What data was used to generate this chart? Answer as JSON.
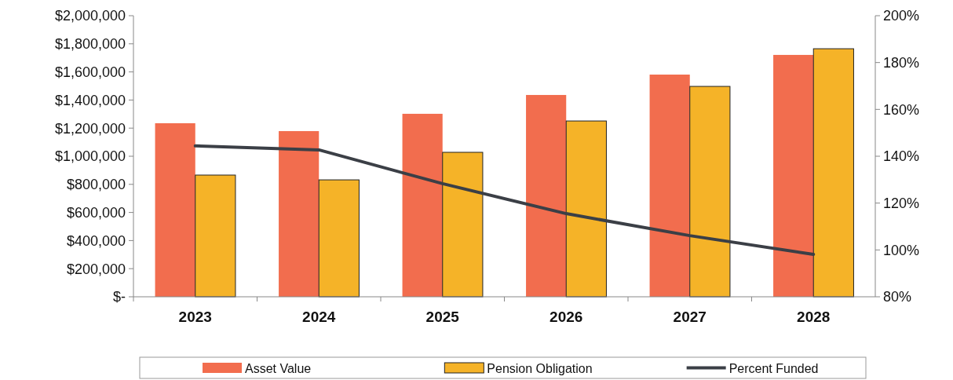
{
  "chart_data": {
    "type": "bar",
    "categories": [
      "2023",
      "2024",
      "2025",
      "2026",
      "2027",
      "2028"
    ],
    "series": [
      {
        "name": "Asset Value",
        "color": "#f26d4e",
        "values": [
          1235000,
          1179000,
          1302000,
          1436000,
          1581000,
          1721000
        ]
      },
      {
        "name": "Pension Obligation",
        "color": "#f5b328",
        "values": [
          866000,
          832000,
          1028000,
          1251000,
          1497000,
          1765000
        ]
      },
      {
        "name": "Percent Funded",
        "type": "line",
        "axis": "y2",
        "color": "#3b3f46",
        "values": [
          144.4,
          142.7,
          128.3,
          115.5,
          106.1,
          98.1
        ]
      }
    ],
    "ylim": [
      0,
      2000000
    ],
    "yticks": [
      {
        "value": 0,
        "label": "$-"
      },
      {
        "value": 200000,
        "label": "$200,000"
      },
      {
        "value": 400000,
        "label": "$400,000"
      },
      {
        "value": 600000,
        "label": "$600,000"
      },
      {
        "value": 800000,
        "label": "$800,000"
      },
      {
        "value": 1000000,
        "label": "$1,000,000"
      },
      {
        "value": 1200000,
        "label": "$1,200,000"
      },
      {
        "value": 1400000,
        "label": "$1,400,000"
      },
      {
        "value": 1600000,
        "label": "$1,600,000"
      },
      {
        "value": 1800000,
        "label": "$1,800,000"
      },
      {
        "value": 2000000,
        "label": "$2,000,000"
      }
    ],
    "y2lim": [
      80,
      200
    ],
    "y2ticks": [
      {
        "value": 80,
        "label": "80%"
      },
      {
        "value": 100,
        "label": "100%"
      },
      {
        "value": 120,
        "label": "120%"
      },
      {
        "value": 140,
        "label": "140%"
      },
      {
        "value": 160,
        "label": "160%"
      },
      {
        "value": 180,
        "label": "180%"
      },
      {
        "value": 200,
        "label": "200%"
      }
    ],
    "legend": "bottom",
    "grid": false
  }
}
